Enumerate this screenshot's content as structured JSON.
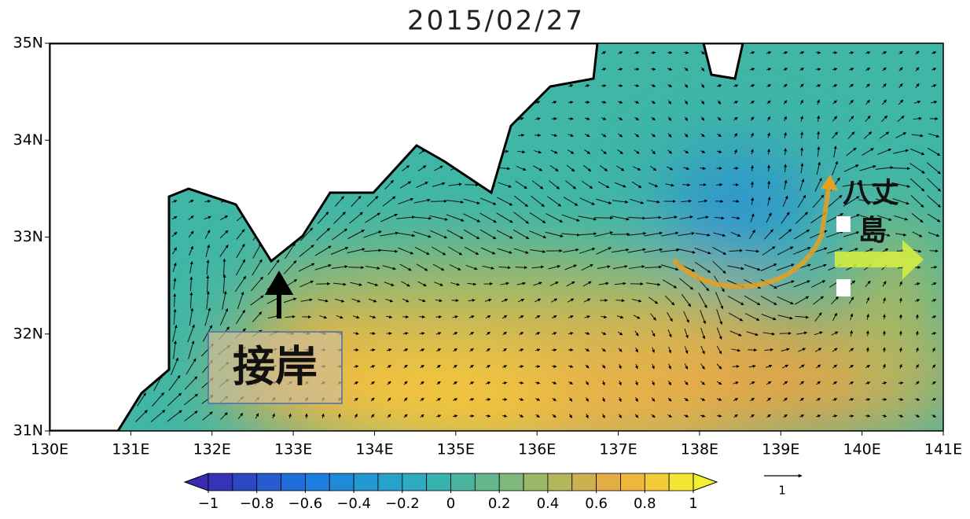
{
  "title": "2015/02/27",
  "map": {
    "lon_range": [
      130,
      141
    ],
    "lat_range": [
      31,
      35
    ],
    "lon_ticks": [
      {
        "value": 130,
        "label": "130E"
      },
      {
        "value": 131,
        "label": "131E"
      },
      {
        "value": 132,
        "label": "132E"
      },
      {
        "value": 133,
        "label": "133E"
      },
      {
        "value": 134,
        "label": "134E"
      },
      {
        "value": 135,
        "label": "135E"
      },
      {
        "value": 136,
        "label": "136E"
      },
      {
        "value": 137,
        "label": "137E"
      },
      {
        "value": 138,
        "label": "138E"
      },
      {
        "value": 139,
        "label": "139E"
      },
      {
        "value": 140,
        "label": "140E"
      },
      {
        "value": 141,
        "label": "141E"
      }
    ],
    "lat_ticks": [
      {
        "value": 31,
        "label": "31N"
      },
      {
        "value": 32,
        "label": "32N"
      },
      {
        "value": 33,
        "label": "33N"
      },
      {
        "value": 34,
        "label": "34N"
      },
      {
        "value": 35,
        "label": "35N"
      }
    ]
  },
  "colorbar": {
    "range": [
      -1,
      1
    ],
    "ticks": [
      {
        "value": -1,
        "label": "−1"
      },
      {
        "value": -0.8,
        "label": "−0.8"
      },
      {
        "value": -0.6,
        "label": "−0.6"
      },
      {
        "value": -0.4,
        "label": "−0.4"
      },
      {
        "value": -0.2,
        "label": "−0.2"
      },
      0,
      0.2,
      0.4,
      0.6,
      0.8,
      1
    ]
  },
  "reference_arrow": {
    "value": 1
  },
  "annotations": {
    "approach": "接岸",
    "island_line1": "八丈",
    "island_line2": "島"
  }
}
